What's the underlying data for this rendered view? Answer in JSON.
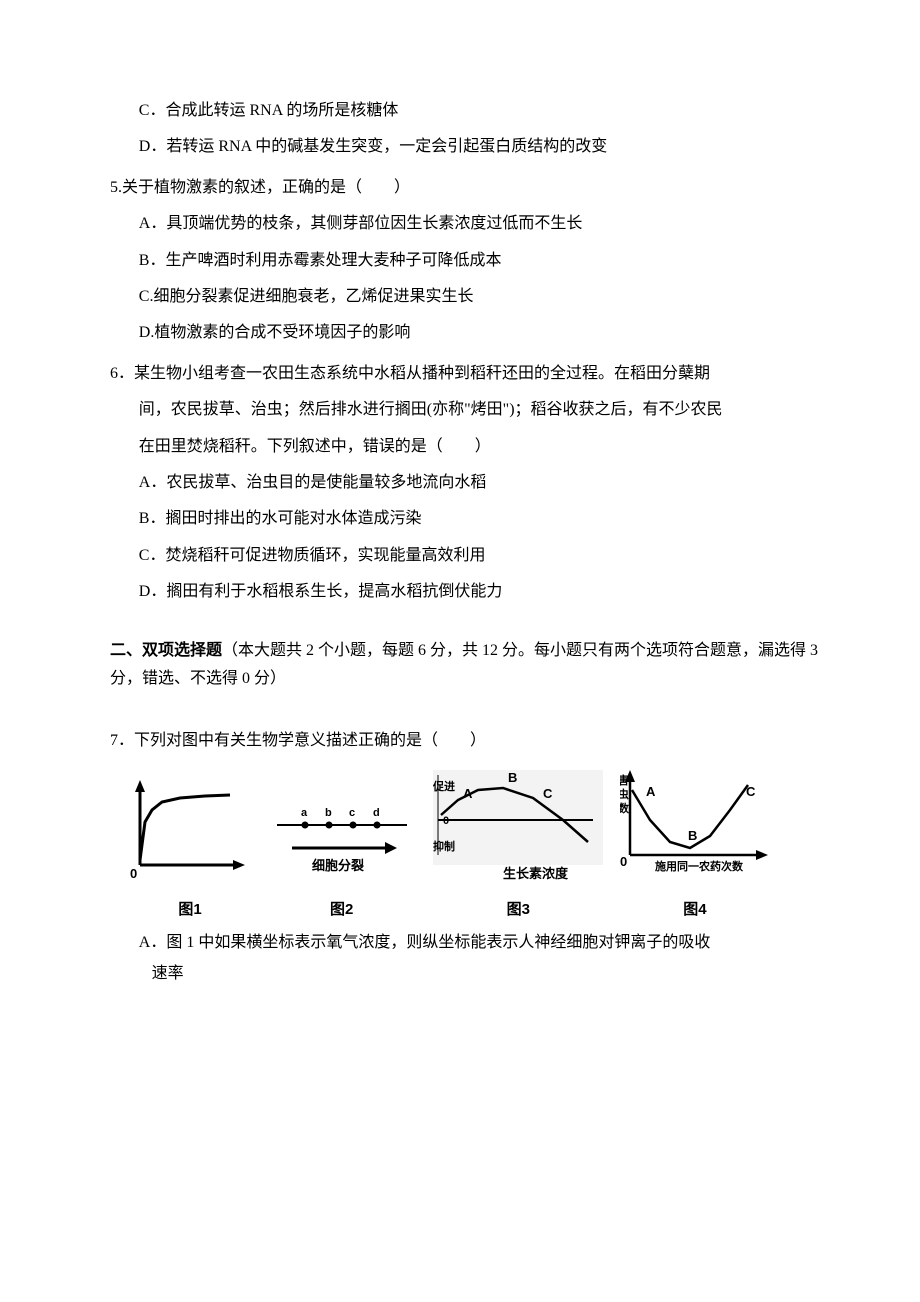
{
  "prev_q": {
    "optC": "C．合成此转运 RNA 的场所是核糖体",
    "optD": "D．若转运 RNA 中的碱基发生突变，一定会引起蛋白质结构的改变"
  },
  "q5": {
    "stem": "5.关于植物激素的叙述，正确的是（　　）",
    "A": "A．具顶端优势的枝条，其侧芽部位因生长素浓度过低而不生长",
    "B": "B．生产啤酒时利用赤霉素处理大麦种子可降低成本",
    "C": "C.细胞分裂素促进细胞衰老，乙烯促进果实生长",
    "D": "D.植物激素的合成不受环境因子的影响"
  },
  "q6": {
    "stem1": "6．某生物小组考查一农田生态系统中水稻从播种到稻秆还田的全过程。在稻田分蘖期",
    "stem2": "间，农民拔草、治虫；然后排水进行搁田(亦称\"烤田\")；稻谷收获之后，有不少农民",
    "stem3": "在田里焚烧稻秆。下列叙述中，错误的是（　　）",
    "A": "A．农民拔草、治虫目的是使能量较多地流向水稻",
    "B": "B．搁田时排出的水可能对水体造成污染",
    "C": "C．焚烧稻秆可促进物质循环，实现能量高效利用",
    "D": "D．搁田有利于水稻根系生长，提高水稻抗倒伏能力"
  },
  "section2": {
    "title_bold": "二、双项选择题",
    "title_rest": "（本大题共 2 个小题，每题 6 分，共 12 分。每小题只有两个选项符合题意，漏选得 3 分，错选、不选得 0 分）"
  },
  "q7": {
    "stem": "7．下列对图中有关生物学意义描述正确的是（　　）",
    "A_line1": "A．图 1 中如果横坐标表示氧气浓度，则纵坐标能表示人神经细胞对钾离子的吸收",
    "A_line2": "速率"
  },
  "figs": {
    "fig1": {
      "caption": "图1",
      "origin_label": "0",
      "curve": {
        "x": [
          10,
          15,
          22,
          32,
          50,
          75,
          100
        ],
        "y": [
          80,
          42,
          30,
          22,
          18,
          16,
          15
        ]
      },
      "axis_color": "#000000",
      "line_color": "#000000",
      "width": 120,
      "height": 100
    },
    "fig2": {
      "caption": "图2",
      "dot_labels": [
        "a",
        "b",
        "c",
        "d"
      ],
      "arrow_label": "细胞分裂",
      "dot_color": "#000000",
      "width": 150,
      "height": 80
    },
    "fig3": {
      "caption": "图3",
      "point_labels": [
        "A",
        "B",
        "C"
      ],
      "y_upper": "促进",
      "y_lower": "抑制",
      "y_zero": "0",
      "x_label": "生长素浓度",
      "curve": {
        "x": [
          8,
          25,
          45,
          70,
          100,
          130,
          155
        ],
        "y": [
          45,
          30,
          20,
          18,
          28,
          50,
          72
        ]
      },
      "width": 170,
      "height": 110
    },
    "fig4": {
      "caption": "图4",
      "y_label_chars": [
        "害",
        "虫",
        "数"
      ],
      "x_label": "施用同一农药次数",
      "point_labels": [
        "A",
        "B",
        "C"
      ],
      "origin_label": "0",
      "curve": {
        "x": [
          12,
          30,
          50,
          70,
          90,
          110,
          128
        ],
        "y": [
          20,
          50,
          72,
          78,
          66,
          40,
          15
        ]
      },
      "width": 150,
      "height": 110
    }
  }
}
